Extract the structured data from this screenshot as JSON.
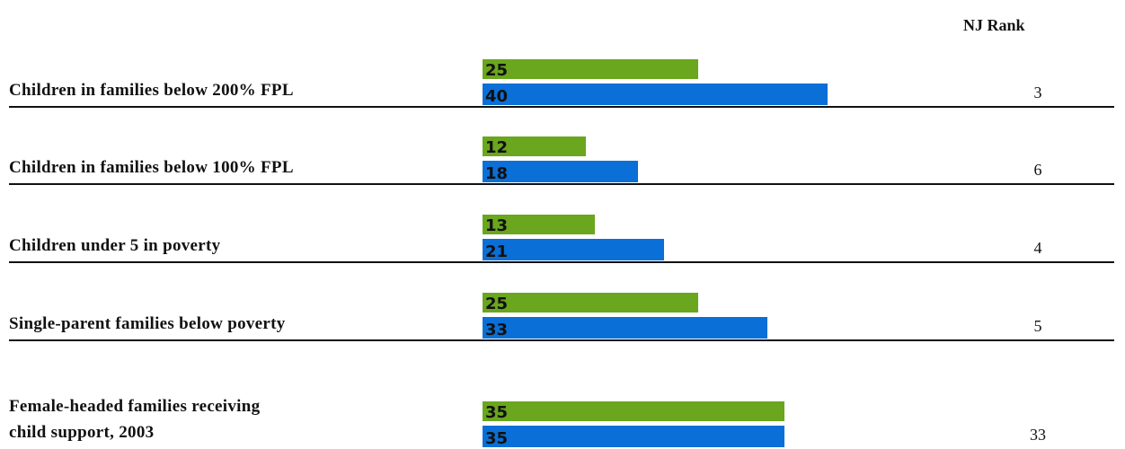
{
  "chart_data": {
    "type": "bar",
    "orientation": "horizontal",
    "categories": [
      "Children in families below 200% FPL",
      "Children in families below 100% FPL",
      "Children under 5 in poverty",
      "Single-parent families below poverty",
      "Female-headed families receiving\nchild support, 2003"
    ],
    "series": [
      {
        "color": "#6aa61e",
        "values": [
          25,
          12,
          13,
          25,
          35
        ]
      },
      {
        "color": "#0a6fd6",
        "values": [
          40,
          18,
          21,
          33,
          35
        ]
      }
    ],
    "rank_header": "NJ Rank",
    "ranks": [
      3,
      6,
      4,
      5,
      33
    ]
  }
}
